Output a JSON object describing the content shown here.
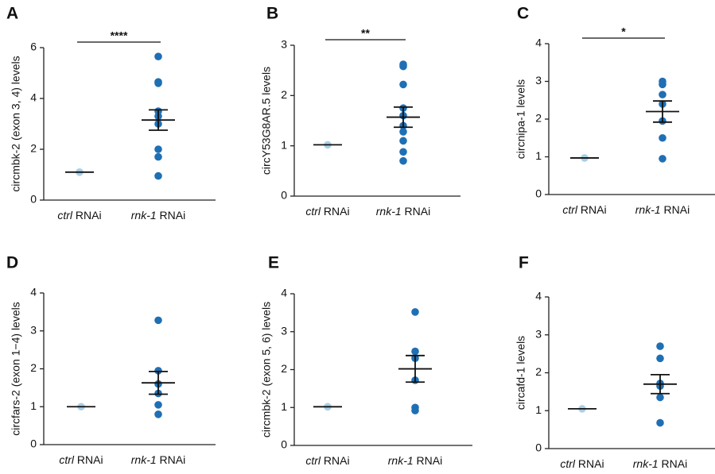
{
  "chart_data": [
    {
      "type": "dot",
      "panel": "A",
      "ylabel": "circmbk-2 (exon 3, 4) levels",
      "categories": [
        "ctrl RNAi",
        "rnk-1 RNAi"
      ],
      "colors": [
        "#a9cfe6",
        "#1f6fb4"
      ],
      "values": [
        [
          1.1
        ],
        [
          5.65,
          4.65,
          4.6,
          3.5,
          3.3,
          3.0,
          2.0,
          1.7,
          0.95
        ]
      ],
      "means": [
        1.1,
        3.15
      ],
      "sem": [
        null,
        0.4
      ],
      "ylim": [
        0,
        6
      ],
      "yticks": [
        0,
        2,
        4,
        6
      ],
      "annotation": "****"
    },
    {
      "type": "dot",
      "panel": "B",
      "ylabel": "circY53G8AR.5 levels",
      "categories": [
        "ctrl RNAi",
        "rnk-1 RNAi"
      ],
      "colors": [
        "#a9cfe6",
        "#1f6fb4"
      ],
      "values": [
        [
          1.02
        ],
        [
          2.62,
          2.58,
          2.22,
          1.75,
          1.6,
          1.4,
          1.28,
          1.1,
          0.88,
          0.7
        ]
      ],
      "means": [
        1.02,
        1.57
      ],
      "sem": [
        null,
        0.2
      ],
      "ylim": [
        0,
        3
      ],
      "yticks": [
        0,
        1,
        2,
        3
      ],
      "annotation": "**"
    },
    {
      "type": "dot",
      "panel": "C",
      "ylabel": "circnipa-1 levels",
      "categories": [
        "ctrl RNAi",
        "rnk-1 RNAi"
      ],
      "colors": [
        "#a9cfe6",
        "#1f6fb4"
      ],
      "values": [
        [
          0.97
        ],
        [
          3.0,
          2.92,
          2.65,
          2.4,
          1.95,
          1.5,
          0.95
        ]
      ],
      "means": [
        0.97,
        2.2
      ],
      "sem": [
        null,
        0.28
      ],
      "ylim": [
        0,
        4
      ],
      "yticks": [
        0,
        1,
        2,
        3,
        4
      ],
      "annotation": "*"
    },
    {
      "type": "dot",
      "panel": "D",
      "ylabel": "circfars-2 (exon 1−4) levels",
      "categories": [
        "ctrl RNAi",
        "rnk-1 RNAi"
      ],
      "colors": [
        "#a9cfe6",
        "#1f6fb4"
      ],
      "values": [
        [
          1.0
        ],
        [
          3.28,
          1.95,
          1.6,
          1.35,
          1.05,
          0.8
        ]
      ],
      "means": [
        1.0,
        1.63
      ],
      "sem": [
        null,
        0.3
      ],
      "ylim": [
        0,
        4
      ],
      "yticks": [
        0,
        1,
        2,
        3,
        4
      ]
    },
    {
      "type": "dot",
      "panel": "E",
      "ylabel": "circmbk-2 (exon 5, 6) levels",
      "categories": [
        "ctrl RNAi",
        "rnk-1 RNAi"
      ],
      "colors": [
        "#a9cfe6",
        "#1f6fb4"
      ],
      "values": [
        [
          1.02
        ],
        [
          3.52,
          2.48,
          2.3,
          1.72,
          1.0,
          0.92
        ]
      ],
      "means": [
        1.02,
        2.02
      ],
      "sem": [
        null,
        0.35
      ],
      "ylim": [
        0,
        4
      ],
      "yticks": [
        0,
        1,
        2,
        3,
        4
      ]
    },
    {
      "type": "dot",
      "panel": "F",
      "ylabel": "circafd-1 levels",
      "categories": [
        "ctrl RNAi",
        "rnk-1 RNAi"
      ],
      "colors": [
        "#a9cfe6",
        "#1f6fb4"
      ],
      "values": [
        [
          1.05
        ],
        [
          2.7,
          2.38,
          1.72,
          1.65,
          1.35,
          0.68
        ]
      ],
      "means": [
        1.05,
        1.7
      ],
      "sem": [
        null,
        0.25
      ],
      "ylim": [
        0,
        4
      ],
      "yticks": [
        0,
        1,
        2,
        3,
        4
      ]
    }
  ]
}
